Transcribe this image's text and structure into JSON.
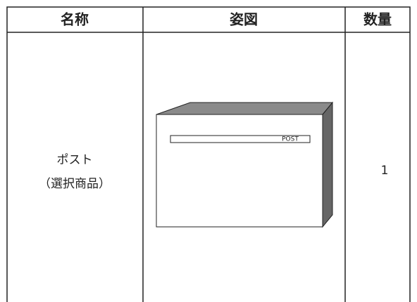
{
  "table": {
    "header": [
      "名称",
      "姿図",
      "数量"
    ],
    "rows": [
      {
        "name": "ポスト",
        "note": "（選択商品）",
        "drawing_label": "POST",
        "quantity": 1
      }
    ]
  }
}
